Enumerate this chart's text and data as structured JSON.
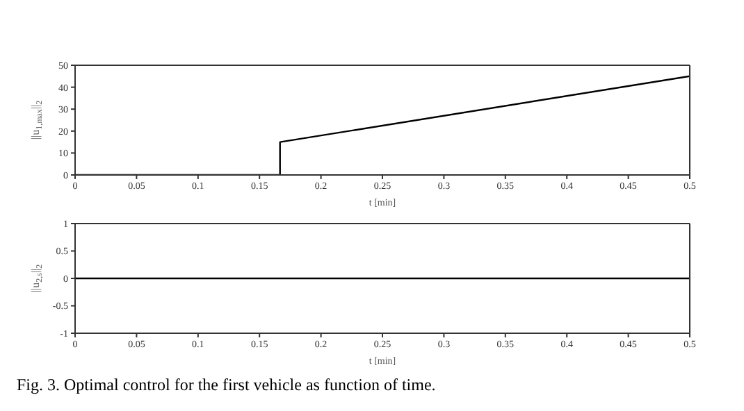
{
  "chart_data": [
    {
      "type": "line",
      "x": [
        0,
        0.1667,
        0.1667,
        0.5
      ],
      "values": [
        0,
        0,
        15,
        45
      ],
      "color": "#000000",
      "xlabel": "t [min]",
      "ylabel": "||u$_{1,max}$||$_{2}$",
      "xlim": [
        0,
        0.5
      ],
      "xticks": [
        0,
        0.05,
        0.1,
        0.15,
        0.2,
        0.25,
        0.3,
        0.35,
        0.4,
        0.45,
        0.5
      ],
      "ylim": [
        0,
        50
      ],
      "yticks": [
        0,
        10,
        20,
        30,
        40,
        50
      ],
      "grid": false,
      "legend": false,
      "marker": "none",
      "line_style": "solid"
    },
    {
      "type": "line",
      "x": [
        0,
        0.5
      ],
      "values": [
        0,
        0
      ],
      "color": "#000000",
      "xlabel": "t [min]",
      "ylabel": "||u$_{2,s}$||$_{2}$",
      "xlim": [
        0,
        0.5
      ],
      "xticks": [
        0,
        0.05,
        0.1,
        0.15,
        0.2,
        0.25,
        0.3,
        0.35,
        0.4,
        0.45,
        0.5
      ],
      "ylim": [
        -1,
        1
      ],
      "yticks": [
        -1,
        -0.5,
        0,
        0.5,
        1
      ],
      "grid": false,
      "legend": false,
      "marker": "none",
      "line_style": "solid",
      "annotations": [
        "Fig. 3. Optimal control for the first vehicle as function of time."
      ]
    }
  ]
}
